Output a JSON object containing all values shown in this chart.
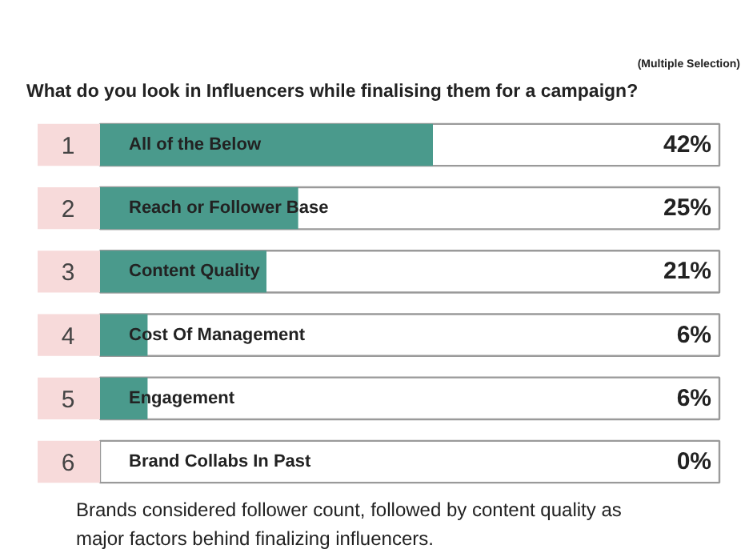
{
  "chart_data": {
    "type": "bar",
    "orientation": "horizontal",
    "title": "What do you look in Influencers while finalising them for a campaign?",
    "subtitle": "(Multiple Selection)",
    "categories": [
      "All of the Below",
      "Reach or Follower Base",
      "Content Quality",
      "Cost Of Management",
      "Engagement",
      "Brand Collabs In Past"
    ],
    "values": [
      42,
      25,
      21,
      6,
      6,
      0
    ],
    "color": "#4a9a8c",
    "value_labels": [
      "42%",
      "25%",
      "21%",
      "6%",
      "6%",
      "0%"
    ],
    "annotations": [
      "1",
      "2",
      "3",
      "4",
      "5",
      "6",
      "Brands considered follower count, followed by content quality as major factors behind finalizing influencers."
    ]
  }
}
